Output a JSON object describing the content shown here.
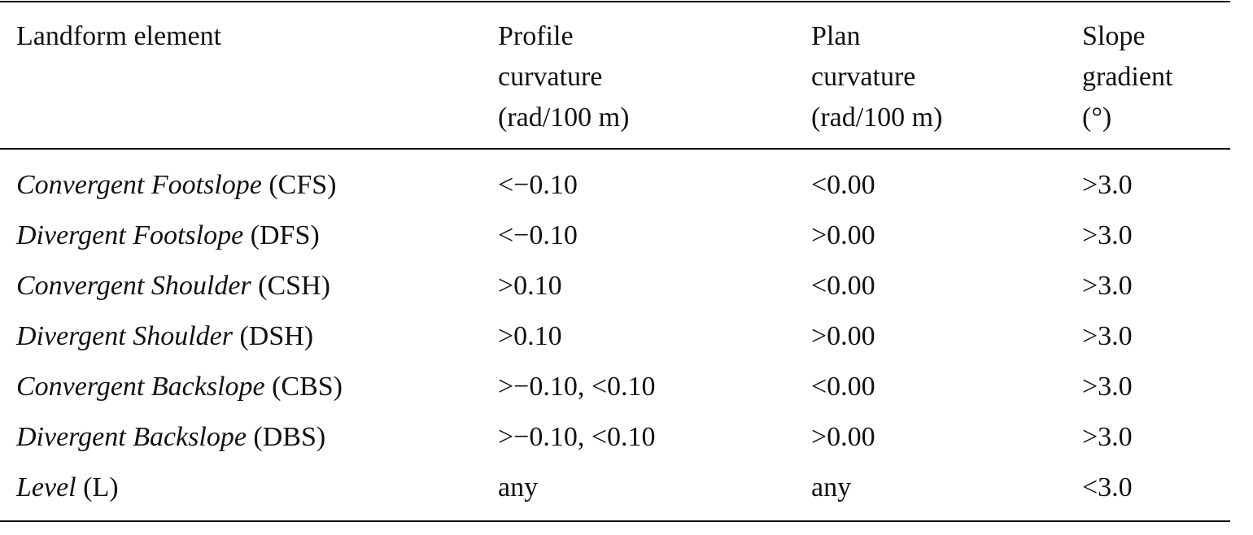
{
  "table": {
    "header": [
      [
        "Landform element"
      ],
      [
        "Profile",
        "curvature",
        "(rad/100 m)"
      ],
      [
        "Plan",
        "curvature",
        "(rad/100 m)"
      ],
      [
        "Slope",
        "gradient",
        "(°)"
      ]
    ],
    "rows": [
      {
        "name": "Convergent Footslope",
        "abbr": "(CFS)",
        "cells": [
          "<−0.10",
          "<0.00",
          ">3.0"
        ]
      },
      {
        "name": "Divergent Footslope",
        "abbr": "(DFS)",
        "cells": [
          "<−0.10",
          ">0.00",
          ">3.0"
        ]
      },
      {
        "name": "Convergent Shoulder",
        "abbr": "(CSH)",
        "cells": [
          ">0.10",
          "<0.00",
          ">3.0"
        ]
      },
      {
        "name": "Divergent Shoulder",
        "abbr": "(DSH)",
        "cells": [
          ">0.10",
          ">0.00",
          ">3.0"
        ]
      },
      {
        "name": "Convergent Backslope",
        "abbr": "(CBS)",
        "cells": [
          ">−0.10, <0.10",
          "<0.00",
          ">3.0"
        ]
      },
      {
        "name": "Divergent Backslope",
        "abbr": "(DBS)",
        "cells": [
          ">−0.10, <0.10",
          ">0.00",
          ">3.0"
        ]
      },
      {
        "name": "Level",
        "abbr": "(L)",
        "cells": [
          "any",
          "any",
          "<3.0"
        ]
      }
    ]
  }
}
